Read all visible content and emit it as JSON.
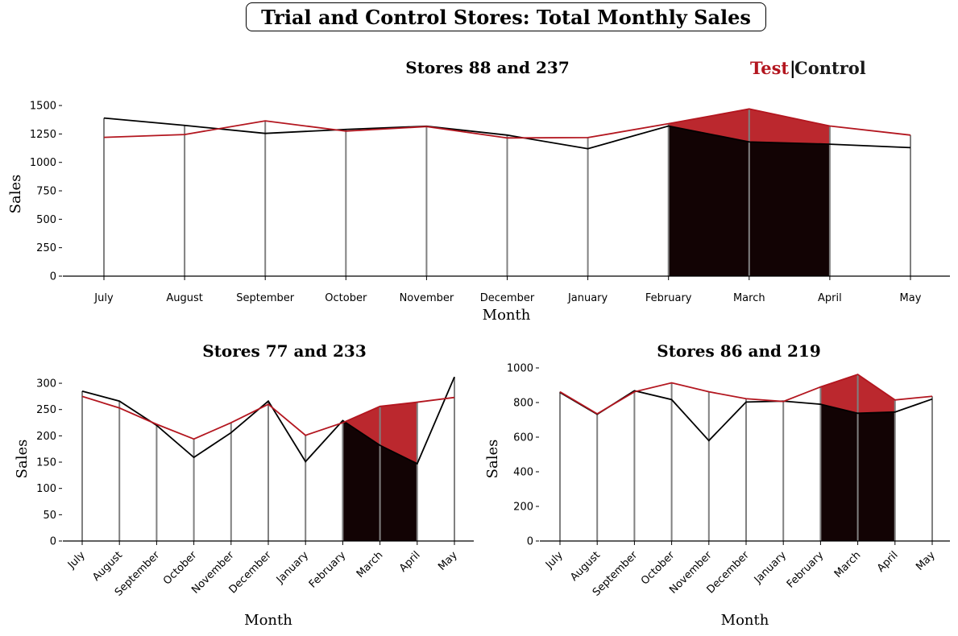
{
  "figure": {
    "title": "Trial and Control Stores: Total Monthly Sales",
    "legend": {
      "test_label": "Test",
      "separator": "|",
      "control_label": "Control"
    }
  },
  "colors": {
    "test": "#b3161f",
    "control": "#000000",
    "test_fill": "#b71c23",
    "control_fill": "#120304",
    "stem": "#808080"
  },
  "chart_data": [
    {
      "type": "line",
      "title": "Stores 88 and 237",
      "xlabel": "Month",
      "ylabel": "Sales",
      "categories": [
        "July",
        "August",
        "September",
        "October",
        "November",
        "December",
        "January",
        "February",
        "March",
        "April",
        "May"
      ],
      "ylim": [
        0,
        1550
      ],
      "yticks": [
        0,
        250,
        500,
        750,
        1000,
        1250,
        1500
      ],
      "rotate_xticks": false,
      "series": [
        {
          "role": "test",
          "values": [
            1220,
            1245,
            1365,
            1275,
            1315,
            1215,
            1218,
            1340,
            1470,
            1320,
            1240
          ]
        },
        {
          "role": "control",
          "values": [
            1390,
            1325,
            1255,
            1290,
            1318,
            1240,
            1120,
            1320,
            1180,
            1160,
            1130
          ]
        }
      ],
      "trial_period": [
        "February",
        "April"
      ]
    },
    {
      "type": "line",
      "title": "Stores 77 and 233",
      "xlabel": "Month",
      "ylabel": "Sales",
      "categories": [
        "July",
        "August",
        "September",
        "October",
        "November",
        "December",
        "January",
        "February",
        "March",
        "April",
        "May"
      ],
      "ylim": [
        0,
        320
      ],
      "yticks": [
        0,
        50,
        100,
        150,
        200,
        250,
        300
      ],
      "rotate_xticks": true,
      "series": [
        {
          "role": "test",
          "values": [
            275,
            253,
            222,
            194,
            225,
            260,
            201,
            225,
            256,
            264,
            273
          ]
        },
        {
          "role": "control",
          "values": [
            285,
            266,
            220,
            159,
            206,
            266,
            151,
            229,
            182,
            147,
            312
          ]
        }
      ],
      "trial_period": [
        "February",
        "April"
      ]
    },
    {
      "type": "line",
      "title": "Stores 86 and 219",
      "xlabel": "Month",
      "ylabel": "Sales",
      "categories": [
        "July",
        "August",
        "September",
        "October",
        "November",
        "December",
        "January",
        "February",
        "March",
        "April",
        "May"
      ],
      "ylim": [
        0,
        1000
      ],
      "yticks": [
        0,
        200,
        400,
        600,
        800,
        1000
      ],
      "rotate_xticks": true,
      "series": [
        {
          "role": "test",
          "values": [
            862,
            735,
            862,
            914,
            862,
            822,
            806,
            890,
            962,
            815,
            836
          ]
        },
        {
          "role": "control",
          "values": [
            858,
            732,
            868,
            817,
            580,
            803,
            808,
            790,
            738,
            745,
            820
          ]
        }
      ],
      "trial_period": [
        "February",
        "April"
      ]
    }
  ]
}
